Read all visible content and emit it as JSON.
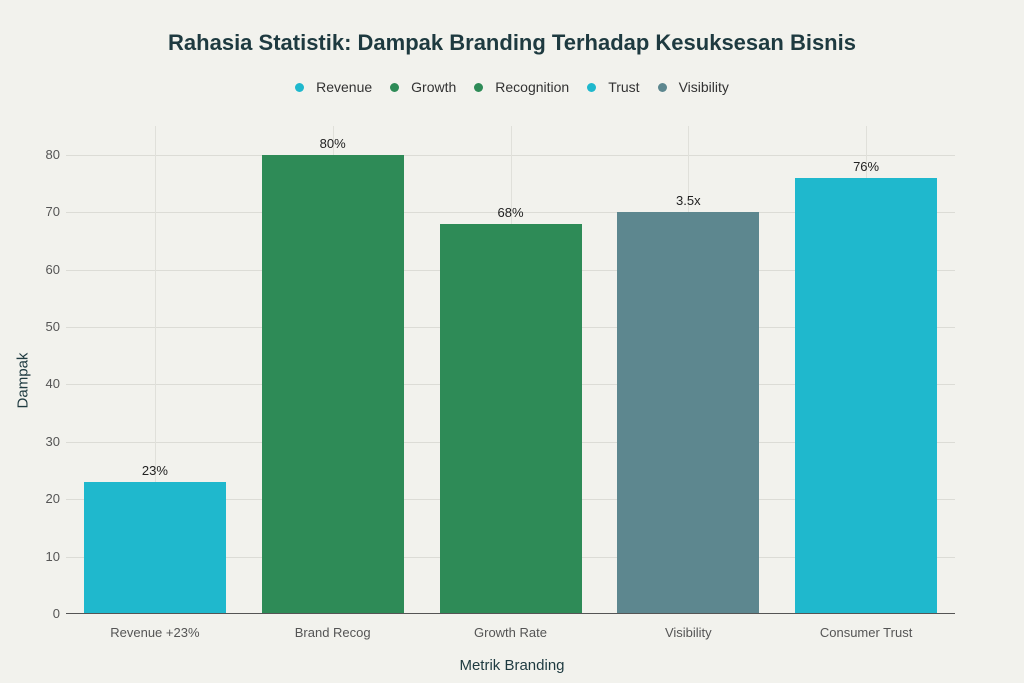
{
  "chart_data": {
    "type": "bar",
    "title": "Rahasia Statistik: Dampak Branding Terhadap Kesuksesan Bisnis",
    "xlabel": "Metrik Branding",
    "ylabel": "Dampak",
    "ylim": [
      0,
      85
    ],
    "yticks": [
      "0",
      "10",
      "20",
      "30",
      "40",
      "50",
      "60",
      "70",
      "80"
    ],
    "categories": [
      "Revenue +23%",
      "Brand Recog",
      "Growth Rate",
      "Visibility",
      "Consumer Trust"
    ],
    "values": [
      23,
      80,
      68,
      70,
      76
    ],
    "data_labels": [
      "23%",
      "80%",
      "68%",
      "3.5x",
      "76%"
    ],
    "bar_colors": [
      "#1fb8cd",
      "#2e8b57",
      "#2e8b57",
      "#5d878f",
      "#1fb8cd"
    ],
    "legend": [
      {
        "name": "Revenue",
        "color": "#1fb8cd"
      },
      {
        "name": "Growth",
        "color": "#2e8b57"
      },
      {
        "name": "Recognition",
        "color": "#2e8b57"
      },
      {
        "name": "Trust",
        "color": "#1fb8cd"
      },
      {
        "name": "Visibility",
        "color": "#5d878f"
      }
    ],
    "legend_position": "top",
    "grid": true
  }
}
